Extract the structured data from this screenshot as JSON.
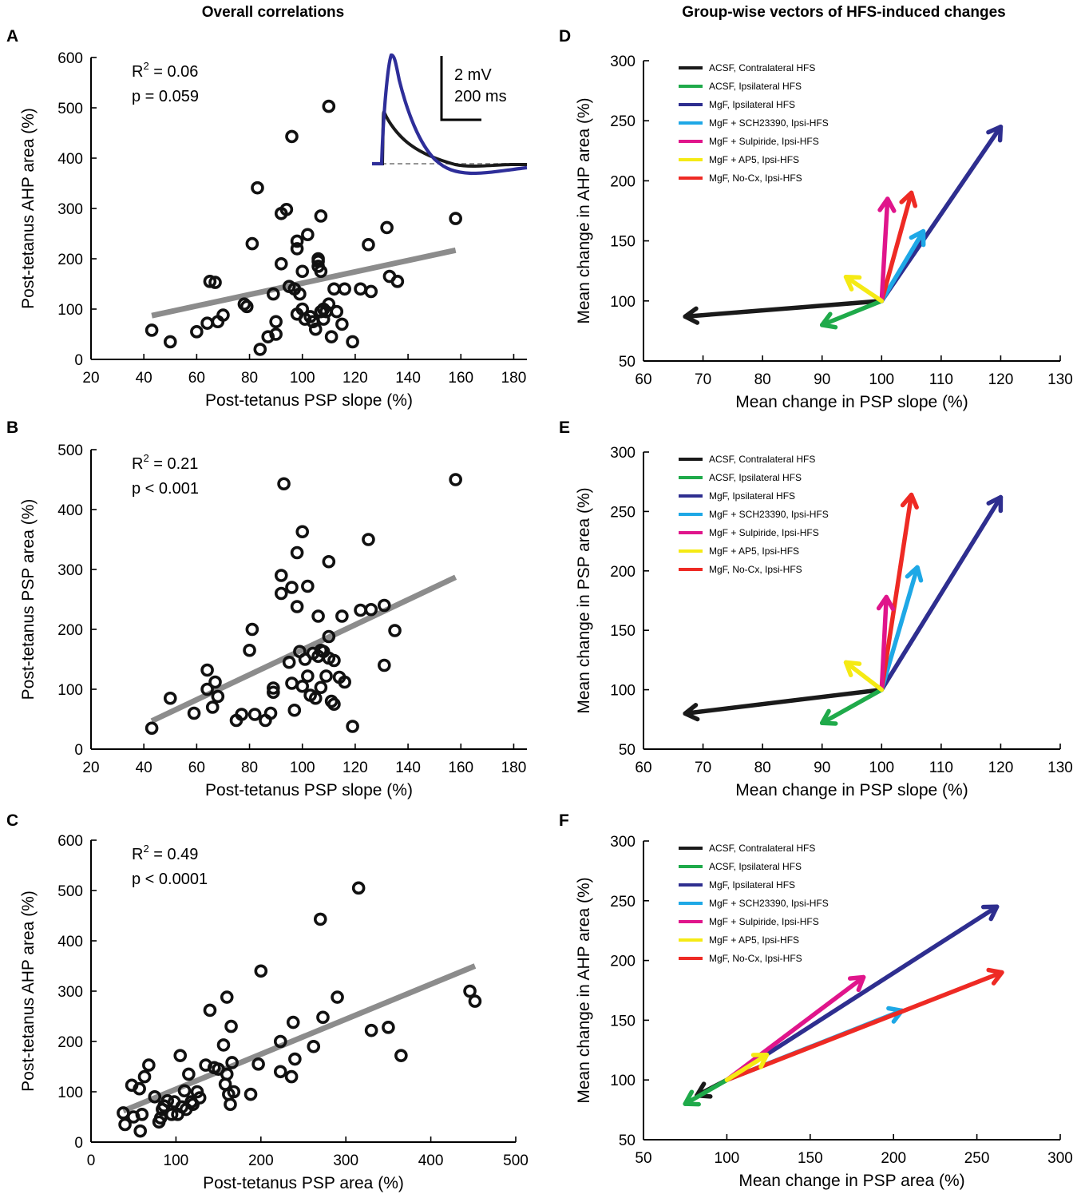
{
  "column_titles": {
    "left": "Overall correlations",
    "right": "Group-wise vectors of HFS-induced changes"
  },
  "legend_entries": [
    {
      "name": "ACSF, Contralateral HFS",
      "color": "#1a1a1a"
    },
    {
      "name": "ACSF, Ipsilateral HFS",
      "color": "#1faa4a"
    },
    {
      "name": "MgF, Ipsilateral HFS",
      "color": "#2e2e8f"
    },
    {
      "name": "MgF + SCH23390, Ipsi-HFS",
      "color": "#1ea8e6"
    },
    {
      "name": "MgF + Sulpiride, Ipsi-HFS",
      "color": "#e0158b"
    },
    {
      "name": "MgF + AP5, Ipsi-HFS",
      "color": "#f5ea14"
    },
    {
      "name": "MgF, No-Cx, Ipsi-HFS",
      "color": "#ee2a24"
    }
  ],
  "chart_data": [
    {
      "panel": "A",
      "type": "scatter",
      "xlabel": "Post-tetanus PSP slope (%)",
      "ylabel": "Post-tetanus AHP area (%)",
      "xlim": [
        20,
        185
      ],
      "ylim": [
        0,
        600
      ],
      "xticks": [
        20,
        40,
        60,
        80,
        100,
        120,
        140,
        160,
        180
      ],
      "yticks": [
        0,
        100,
        200,
        300,
        400,
        500,
        600
      ],
      "stats": {
        "r2_label": "R",
        "r2_sup": "2",
        "r2_value": " = 0.06",
        "p": "p = 0.059"
      },
      "fit_line": {
        "x": [
          43,
          158
        ],
        "y": [
          87,
          217
        ]
      },
      "inset": {
        "amp_label": "2 mV",
        "time_label": "200 ms"
      },
      "points": [
        [
          43,
          58
        ],
        [
          50,
          35
        ],
        [
          60,
          55
        ],
        [
          65,
          155
        ],
        [
          67,
          153
        ],
        [
          64,
          72
        ],
        [
          68,
          75
        ],
        [
          70,
          88
        ],
        [
          78,
          110
        ],
        [
          79,
          105
        ],
        [
          81,
          230
        ],
        [
          83,
          341
        ],
        [
          84,
          20
        ],
        [
          87,
          45
        ],
        [
          89,
          130
        ],
        [
          90,
          75
        ],
        [
          90,
          50
        ],
        [
          92,
          290
        ],
        [
          94,
          298
        ],
        [
          92,
          190
        ],
        [
          95,
          145
        ],
        [
          96,
          443
        ],
        [
          97,
          140
        ],
        [
          98,
          90
        ],
        [
          98,
          220
        ],
        [
          98,
          235
        ],
        [
          99,
          130
        ],
        [
          100,
          175
        ],
        [
          100,
          100
        ],
        [
          101,
          80
        ],
        [
          102,
          248
        ],
        [
          103,
          85
        ],
        [
          104,
          75
        ],
        [
          105,
          60
        ],
        [
          106,
          200
        ],
        [
          106,
          195
        ],
        [
          106,
          185
        ],
        [
          107,
          175
        ],
        [
          107,
          95
        ],
        [
          107,
          285
        ],
        [
          108,
          100
        ],
        [
          108,
          80
        ],
        [
          109,
          95
        ],
        [
          110,
          110
        ],
        [
          110,
          503
        ],
        [
          111,
          45
        ],
        [
          112,
          140
        ],
        [
          113,
          95
        ],
        [
          115,
          70
        ],
        [
          116,
          140
        ],
        [
          119,
          35
        ],
        [
          122,
          140
        ],
        [
          125,
          228
        ],
        [
          126,
          135
        ],
        [
          132,
          262
        ],
        [
          133,
          165
        ],
        [
          136,
          155
        ],
        [
          158,
          280
        ]
      ]
    },
    {
      "panel": "B",
      "type": "scatter",
      "xlabel": "Post-tetanus PSP slope (%)",
      "ylabel": "Post-tetanus PSP area (%)",
      "xlim": [
        20,
        185
      ],
      "ylim": [
        0,
        500
      ],
      "xticks": [
        20,
        40,
        60,
        80,
        100,
        120,
        140,
        160,
        180
      ],
      "yticks": [
        0,
        100,
        200,
        300,
        400,
        500
      ],
      "stats": {
        "r2_label": "R",
        "r2_sup": "2",
        "r2_value": " = 0.21",
        "p": "p < 0.001"
      },
      "fit_line": {
        "x": [
          43,
          158
        ],
        "y": [
          47,
          287
        ]
      },
      "points": [
        [
          43,
          35
        ],
        [
          50,
          85
        ],
        [
          59,
          60
        ],
        [
          64,
          132
        ],
        [
          64,
          100
        ],
        [
          66,
          70
        ],
        [
          67,
          112
        ],
        [
          68,
          88
        ],
        [
          75,
          48
        ],
        [
          77,
          58
        ],
        [
          80,
          165
        ],
        [
          81,
          200
        ],
        [
          82,
          58
        ],
        [
          86,
          48
        ],
        [
          88,
          60
        ],
        [
          89,
          95
        ],
        [
          89,
          102
        ],
        [
          92,
          290
        ],
        [
          92,
          260
        ],
        [
          93,
          443
        ],
        [
          95,
          145
        ],
        [
          96,
          270
        ],
        [
          96,
          110
        ],
        [
          97,
          65
        ],
        [
          98,
          328
        ],
        [
          98,
          238
        ],
        [
          99,
          163
        ],
        [
          100,
          363
        ],
        [
          100,
          105
        ],
        [
          101,
          150
        ],
        [
          102,
          272
        ],
        [
          102,
          122
        ],
        [
          103,
          90
        ],
        [
          104,
          160
        ],
        [
          105,
          85
        ],
        [
          106,
          222
        ],
        [
          106,
          155
        ],
        [
          107,
          165
        ],
        [
          107,
          103
        ],
        [
          108,
          163
        ],
        [
          109,
          122
        ],
        [
          110,
          188
        ],
        [
          110,
          313
        ],
        [
          110,
          152
        ],
        [
          111,
          80
        ],
        [
          112,
          148
        ],
        [
          112,
          75
        ],
        [
          114,
          120
        ],
        [
          115,
          222
        ],
        [
          116,
          112
        ],
        [
          119,
          38
        ],
        [
          122,
          232
        ],
        [
          125,
          350
        ],
        [
          126,
          233
        ],
        [
          131,
          240
        ],
        [
          131,
          140
        ],
        [
          135,
          198
        ],
        [
          158,
          450
        ]
      ]
    },
    {
      "panel": "C",
      "type": "scatter",
      "xlabel": "Post-tetanus PSP area (%)",
      "ylabel": "Post-tetanus AHP area (%)",
      "xlim": [
        0,
        500
      ],
      "ylim": [
        0,
        600
      ],
      "xticks": [
        0,
        100,
        200,
        300,
        400,
        500
      ],
      "yticks": [
        0,
        100,
        200,
        300,
        400,
        500,
        600
      ],
      "stats": {
        "r2_label": "R",
        "r2_sup": "2",
        "r2_value": " = 0.49",
        "p": "p < 0.0001"
      },
      "fit_line": {
        "x": [
          38,
          452
        ],
        "y": [
          62,
          350
        ]
      },
      "points": [
        [
          38,
          58
        ],
        [
          40,
          35
        ],
        [
          48,
          113
        ],
        [
          50,
          50
        ],
        [
          57,
          106
        ],
        [
          58,
          22
        ],
        [
          60,
          55
        ],
        [
          63,
          130
        ],
        [
          68,
          153
        ],
        [
          75,
          90
        ],
        [
          80,
          40
        ],
        [
          82,
          48
        ],
        [
          84,
          65
        ],
        [
          86,
          72
        ],
        [
          90,
          82
        ],
        [
          95,
          55
        ],
        [
          98,
          80
        ],
        [
          102,
          55
        ],
        [
          105,
          172
        ],
        [
          107,
          70
        ],
        [
          110,
          102
        ],
        [
          112,
          65
        ],
        [
          115,
          135
        ],
        [
          118,
          80
        ],
        [
          120,
          75
        ],
        [
          125,
          100
        ],
        [
          128,
          88
        ],
        [
          135,
          153
        ],
        [
          140,
          262
        ],
        [
          145,
          148
        ],
        [
          150,
          145
        ],
        [
          156,
          193
        ],
        [
          158,
          115
        ],
        [
          160,
          288
        ],
        [
          160,
          135
        ],
        [
          162,
          95
        ],
        [
          164,
          75
        ],
        [
          165,
          230
        ],
        [
          166,
          158
        ],
        [
          168,
          100
        ],
        [
          188,
          95
        ],
        [
          197,
          155
        ],
        [
          200,
          340
        ],
        [
          223,
          200
        ],
        [
          223,
          140
        ],
        [
          236,
          130
        ],
        [
          238,
          238
        ],
        [
          240,
          165
        ],
        [
          262,
          190
        ],
        [
          270,
          443
        ],
        [
          273,
          248
        ],
        [
          290,
          288
        ],
        [
          315,
          505
        ],
        [
          330,
          222
        ],
        [
          350,
          228
        ],
        [
          365,
          172
        ],
        [
          446,
          300
        ],
        [
          452,
          280
        ]
      ]
    },
    {
      "panel": "D",
      "type": "vector",
      "xlabel": "Mean change in PSP slope (%)",
      "ylabel": "Mean change in AHP area (%)",
      "xlim": [
        60,
        130
      ],
      "ylim": [
        50,
        300
      ],
      "xticks": [
        60,
        70,
        80,
        90,
        100,
        110,
        120,
        130
      ],
      "yticks": [
        50,
        100,
        150,
        200,
        250,
        300
      ],
      "origin": [
        100,
        100
      ],
      "vectors": [
        [
          67,
          87
        ],
        [
          90,
          80
        ],
        [
          120,
          245
        ],
        [
          107,
          158
        ],
        [
          101,
          185
        ],
        [
          94,
          120
        ],
        [
          105,
          190
        ]
      ]
    },
    {
      "panel": "E",
      "type": "vector",
      "xlabel": "Mean change in PSP slope (%)",
      "ylabel": "Mean change in PSP area (%)",
      "xlim": [
        60,
        130
      ],
      "ylim": [
        50,
        300
      ],
      "xticks": [
        60,
        70,
        80,
        90,
        100,
        110,
        120,
        130
      ],
      "yticks": [
        50,
        100,
        150,
        200,
        250,
        300
      ],
      "origin": [
        100,
        100
      ],
      "vectors": [
        [
          67,
          80
        ],
        [
          90,
          72
        ],
        [
          120,
          262
        ],
        [
          106,
          203
        ],
        [
          100.8,
          178
        ],
        [
          94,
          123
        ],
        [
          105,
          264
        ]
      ]
    },
    {
      "panel": "F",
      "type": "vector",
      "xlabel": "Mean change in PSP area (%)",
      "ylabel": "Mean change in AHP area (%)",
      "xlim": [
        50,
        300
      ],
      "ylim": [
        50,
        300
      ],
      "xticks": [
        50,
        100,
        150,
        200,
        250,
        300
      ],
      "yticks": [
        50,
        100,
        150,
        200,
        250,
        300
      ],
      "origin": [
        100,
        100
      ],
      "vectors": [
        [
          82,
          87
        ],
        [
          75,
          80
        ],
        [
          262,
          245
        ],
        [
          205,
          158
        ],
        [
          182,
          186
        ],
        [
          124,
          121
        ],
        [
          265,
          190
        ]
      ]
    }
  ]
}
